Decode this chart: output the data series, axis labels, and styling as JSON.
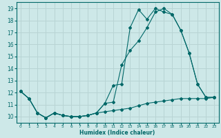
{
  "title": "",
  "xlabel": "Humidex (Indice chaleur)",
  "background_color": "#cde8e8",
  "grid_color": "#b8d4d4",
  "line_color": "#006868",
  "xlim": [
    -0.5,
    23.5
  ],
  "ylim": [
    9.5,
    19.5
  ],
  "xticks": [
    0,
    1,
    2,
    3,
    4,
    5,
    6,
    7,
    8,
    9,
    10,
    11,
    12,
    13,
    14,
    15,
    16,
    17,
    18,
    19,
    20,
    21,
    22,
    23
  ],
  "yticks": [
    10,
    11,
    12,
    13,
    14,
    15,
    16,
    17,
    18,
    19
  ],
  "line1_x": [
    0,
    1,
    2,
    3,
    4,
    5,
    6,
    7,
    8,
    9,
    10,
    11,
    12,
    13,
    14,
    15,
    16,
    17,
    18,
    19,
    20,
    21,
    22,
    23
  ],
  "line1_y": [
    12.1,
    11.5,
    10.3,
    9.9,
    10.3,
    10.1,
    10.0,
    10.0,
    10.1,
    10.3,
    11.1,
    12.6,
    12.7,
    17.4,
    18.9,
    18.1,
    19.0,
    18.7,
    18.5,
    17.2,
    15.3,
    12.7,
    11.6,
    11.6
  ],
  "line2_x": [
    0,
    1,
    2,
    3,
    4,
    5,
    6,
    7,
    8,
    9,
    10,
    11,
    12,
    13,
    14,
    15,
    16,
    17,
    18,
    19,
    20,
    21,
    22,
    23
  ],
  "line2_y": [
    12.1,
    11.5,
    10.3,
    9.9,
    10.3,
    10.1,
    10.0,
    10.0,
    10.1,
    10.3,
    11.1,
    11.2,
    14.3,
    15.5,
    16.3,
    17.4,
    18.7,
    19.0,
    18.5,
    17.2,
    15.3,
    12.7,
    11.6,
    11.6
  ],
  "line3_x": [
    0,
    1,
    2,
    3,
    4,
    5,
    6,
    7,
    8,
    9,
    10,
    11,
    12,
    13,
    14,
    15,
    16,
    17,
    18,
    19,
    20,
    21,
    22,
    23
  ],
  "line3_y": [
    12.1,
    11.5,
    10.3,
    9.9,
    10.3,
    10.1,
    10.0,
    10.0,
    10.1,
    10.3,
    10.4,
    10.5,
    10.6,
    10.7,
    10.9,
    11.1,
    11.2,
    11.3,
    11.4,
    11.5,
    11.5,
    11.5,
    11.5,
    11.6
  ]
}
